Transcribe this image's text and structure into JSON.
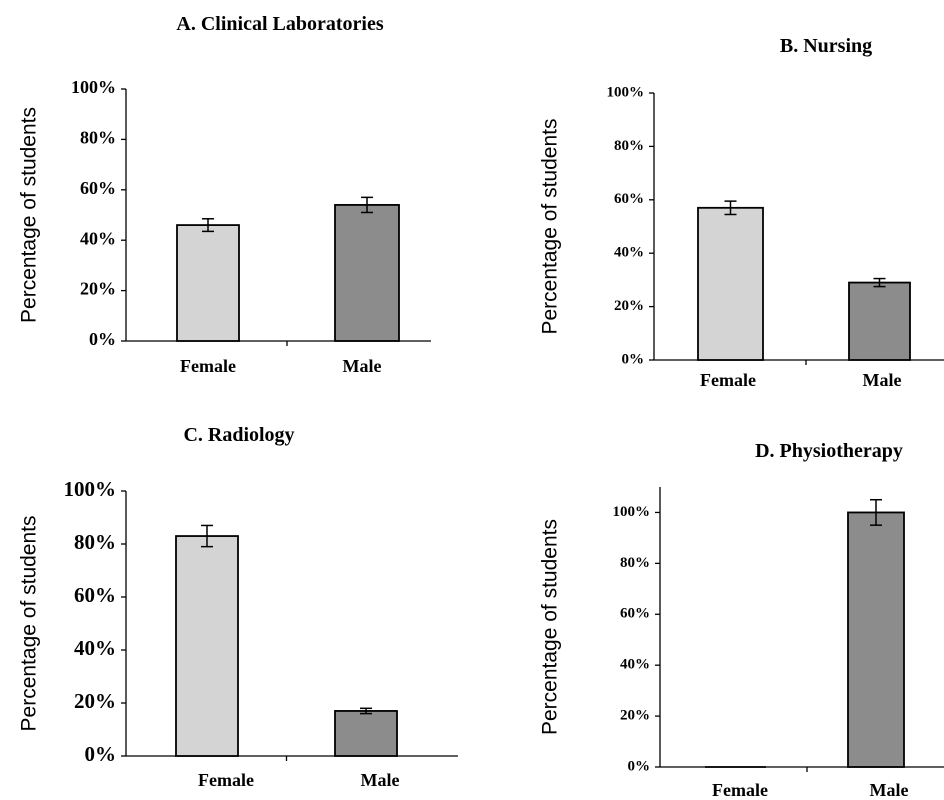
{
  "chart_data": [
    {
      "type": "bar",
      "title": "A. Clinical Laboratories",
      "ylabel": "Percentage of students",
      "categories": [
        "Female",
        "Male"
      ],
      "values": [
        46,
        54
      ],
      "errors": [
        2.5,
        3
      ],
      "ylim": [
        0,
        100
      ],
      "yticks": [
        "0%",
        "20%",
        "40%",
        "60%",
        "80%",
        "100%"
      ],
      "colors": [
        "#d4d4d4",
        "#8c8c8c"
      ],
      "grid": false
    },
    {
      "type": "bar",
      "title": "B. Nursing",
      "ylabel": "Percentage of students",
      "categories": [
        "Female",
        "Male"
      ],
      "values": [
        57,
        29
      ],
      "errors": [
        2.5,
        1.5
      ],
      "ylim": [
        0,
        100
      ],
      "yticks": [
        "0%",
        "20%",
        "40%",
        "60%",
        "80%",
        "100%"
      ],
      "colors": [
        "#d4d4d4",
        "#8c8c8c"
      ],
      "grid": false
    },
    {
      "type": "bar",
      "title": "C. Radiology",
      "ylabel": "Percentage of students",
      "categories": [
        "Female",
        "Male"
      ],
      "values": [
        83,
        17
      ],
      "errors": [
        4,
        1
      ],
      "ylim": [
        0,
        100
      ],
      "yticks": [
        "0%",
        "20%",
        "40%",
        "60%",
        "80%",
        "100%"
      ],
      "colors": [
        "#d4d4d4",
        "#8c8c8c"
      ],
      "grid": false
    },
    {
      "type": "bar",
      "title": "D. Physiotherapy",
      "ylabel": "Percentage of students",
      "categories": [
        "Female",
        "Male"
      ],
      "values": [
        0,
        100
      ],
      "errors": [
        0,
        5
      ],
      "ylim": [
        0,
        110
      ],
      "yticks": [
        "0%",
        "20%",
        "40%",
        "60%",
        "80%",
        "100%"
      ],
      "colors": [
        "#d4d4d4",
        "#8c8c8c"
      ],
      "grid": false
    }
  ]
}
